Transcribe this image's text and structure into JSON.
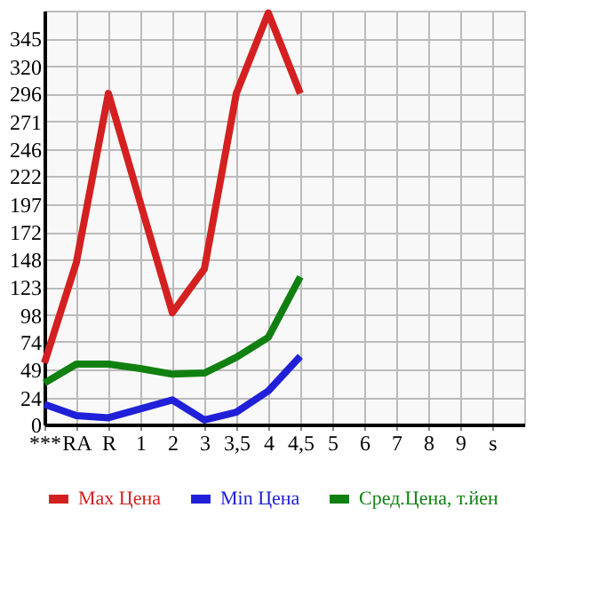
{
  "chart_data": {
    "type": "line",
    "categories": [
      "***",
      "RA",
      "R",
      "1",
      "2",
      "3",
      "3,5",
      "4",
      "4,5",
      "5",
      "6",
      "7",
      "8",
      "9",
      "s"
    ],
    "series": [
      {
        "name": "Max Цена",
        "color": "#d42020",
        "values": [
          55,
          145,
          296,
          198,
          100,
          139,
          296,
          368,
          296,
          null,
          null,
          null,
          null,
          null,
          null
        ]
      },
      {
        "name": "Min Цена",
        "color": "#2020d8",
        "values": [
          18,
          8,
          6,
          14,
          22,
          4,
          11,
          30,
          61,
          null,
          null,
          null,
          null,
          null,
          null
        ]
      },
      {
        "name": "Сред.Цена, т.йен",
        "color": "#108010",
        "values": [
          37,
          54,
          54,
          50,
          45,
          46,
          60,
          78,
          132,
          null,
          null,
          null,
          null,
          null,
          null
        ]
      }
    ],
    "ylim": [
      0,
      370
    ],
    "yticks": [
      0,
      24,
      49,
      74,
      98,
      123,
      148,
      172,
      197,
      222,
      246,
      271,
      296,
      320,
      345
    ],
    "grid": true,
    "legend": "bottom",
    "marker": "none",
    "line_style": "solid"
  }
}
